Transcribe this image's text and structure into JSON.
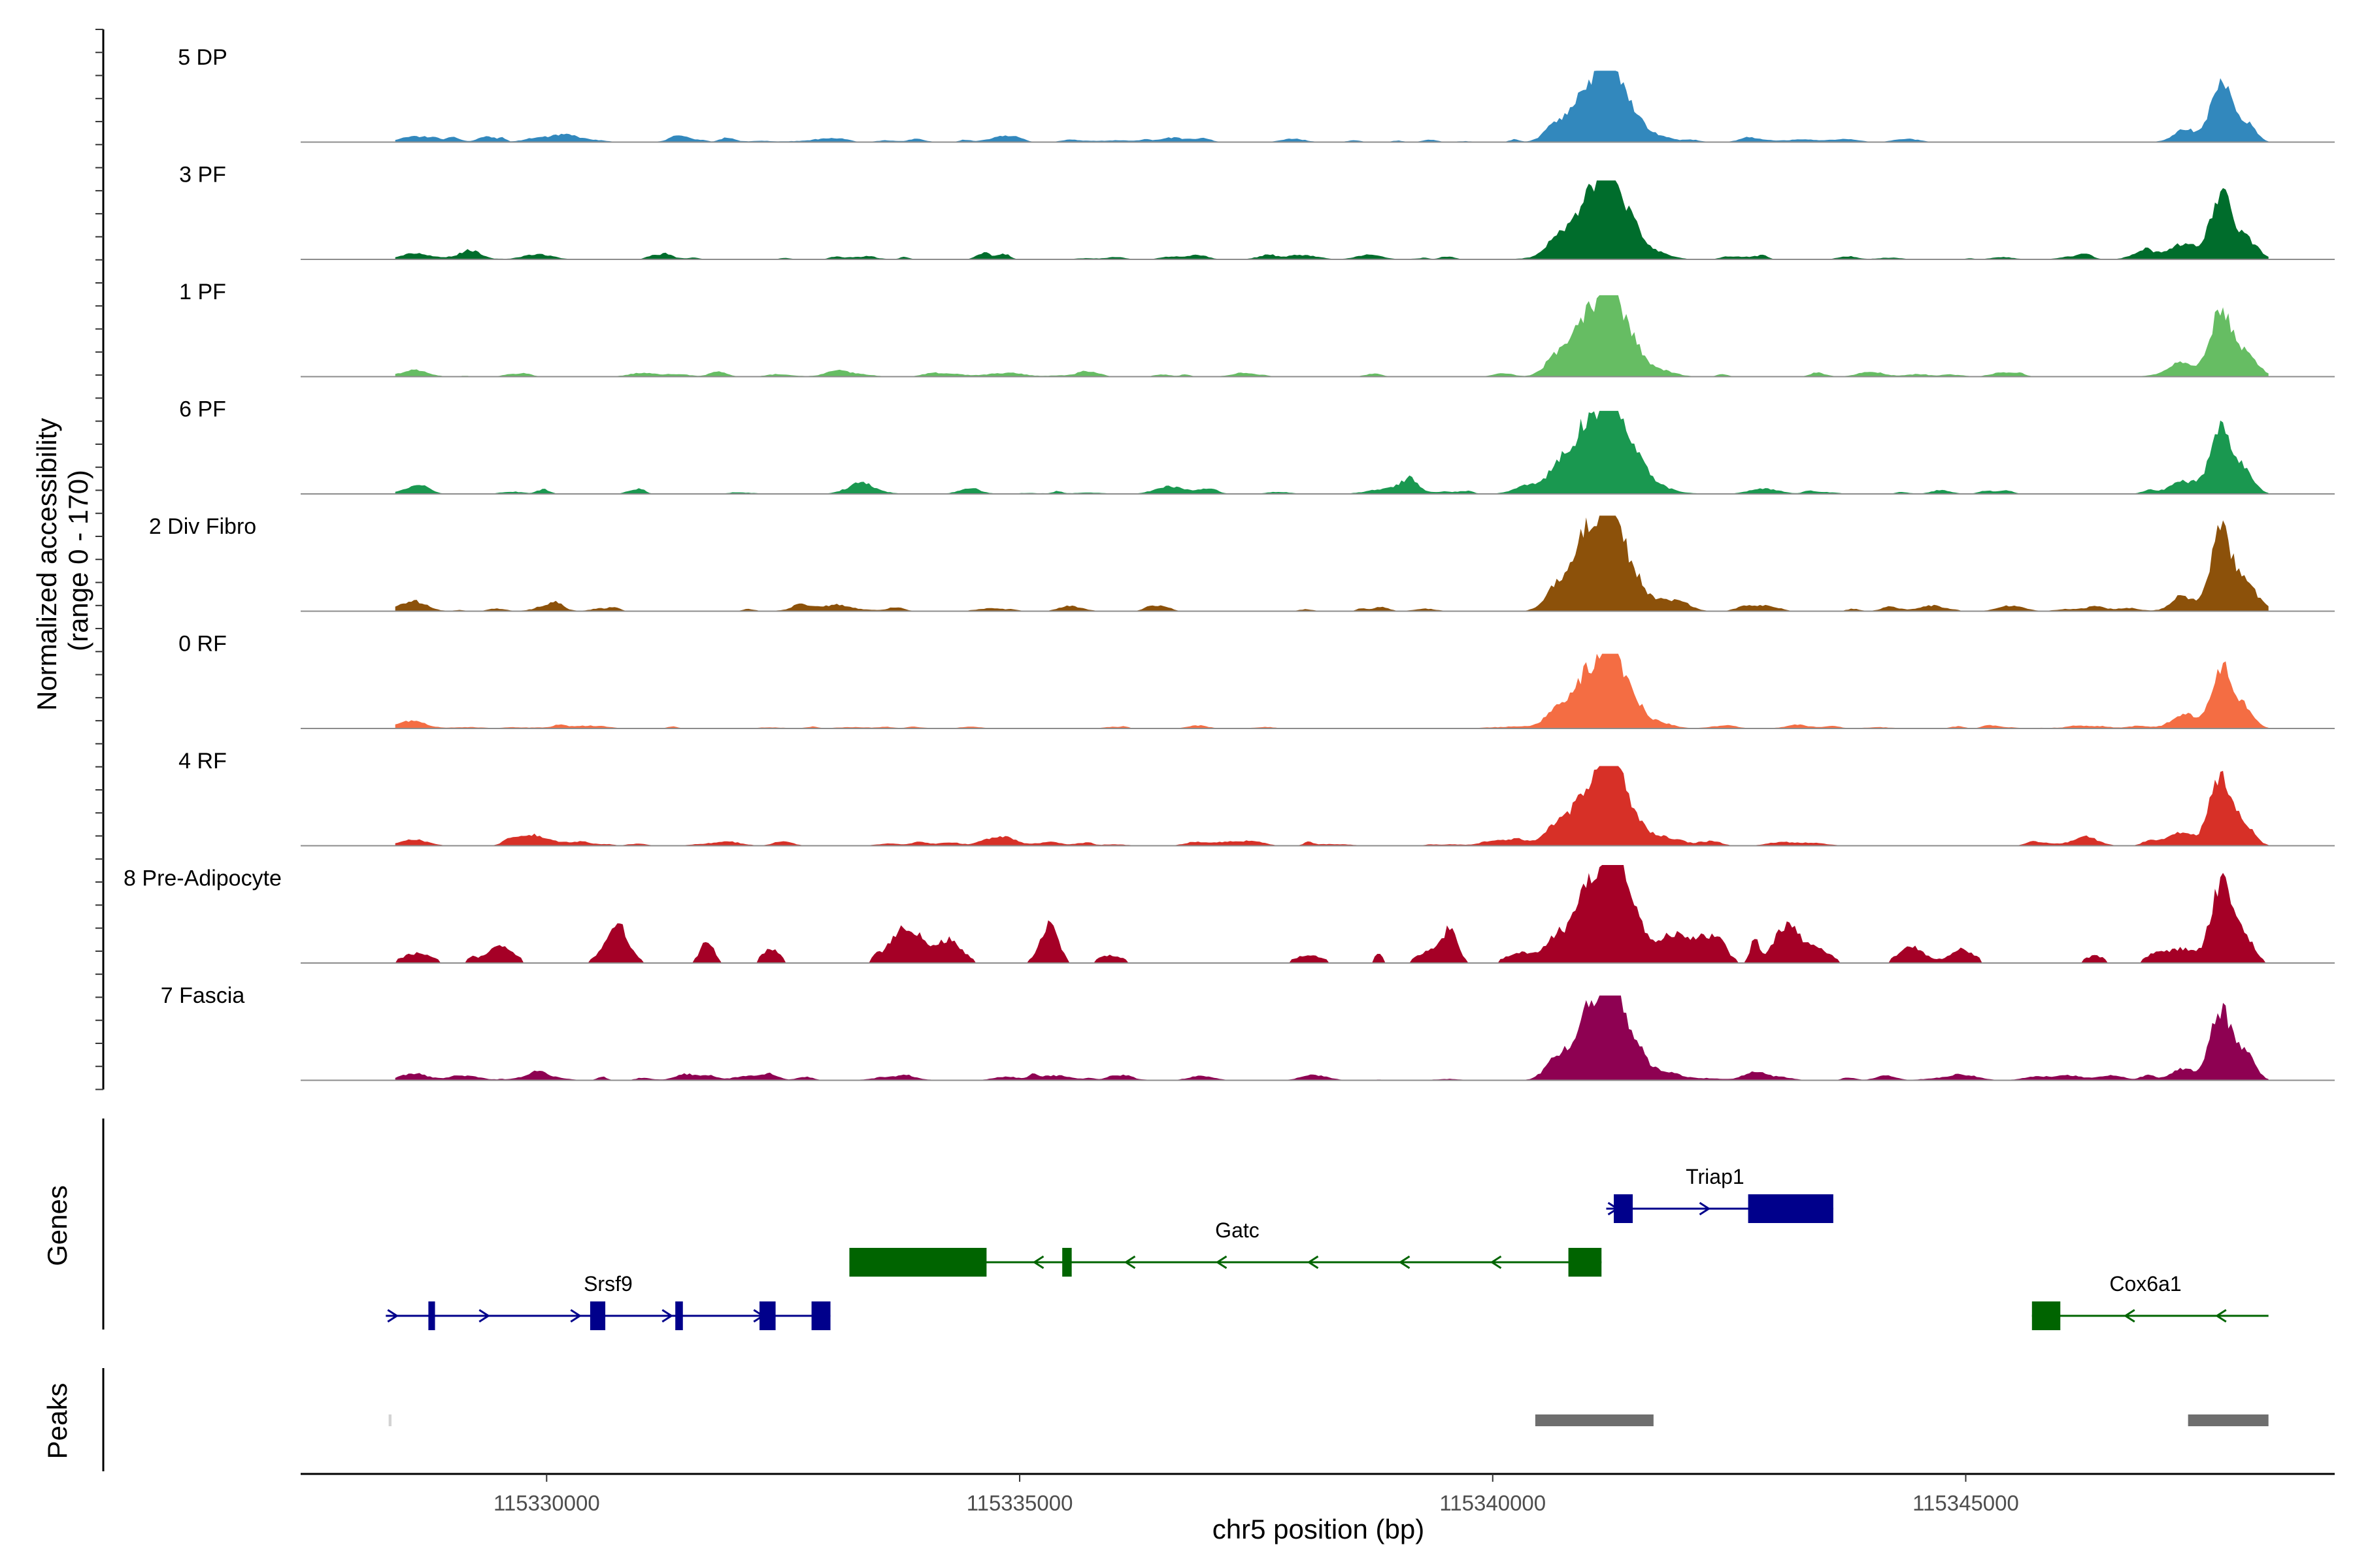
{
  "chart_data": {
    "type": "area",
    "title": "",
    "ylabel": "Normalized accessibility\n(range 0 - 170)",
    "ylabel_lines": [
      "Normalized accessibility",
      "(range 0 - 170)"
    ],
    "xlabel": "chr5 position (bp)",
    "xlim": [
      115327400,
      115348900
    ],
    "ylim": [
      0,
      170
    ],
    "region": [
      115328400,
      115348200
    ],
    "x_ticks": [
      115330000,
      115335000,
      115340000,
      115345000
    ],
    "x_tick_labels": [
      "115330000",
      "115335000",
      "115340000",
      "115345000"
    ],
    "peak_shapes": [
      {
        "center": 115328600,
        "width": 140,
        "rel": 0.08
      },
      {
        "center": 115340700,
        "width": 130,
        "rel": 0.28
      },
      {
        "center": 115340980,
        "width": 120,
        "rel": 0.4
      },
      {
        "center": 115341100,
        "width": 150,
        "rel": 0.46
      },
      {
        "center": 115341250,
        "width": 90,
        "rel": 1.0
      },
      {
        "center": 115341450,
        "width": 110,
        "rel": 0.42
      },
      {
        "center": 115341700,
        "width": 160,
        "rel": 0.1
      },
      {
        "center": 115347300,
        "width": 120,
        "rel": 0.14
      },
      {
        "center": 115347700,
        "width": 110,
        "rel": 0.82
      },
      {
        "center": 115347950,
        "width": 100,
        "rel": 0.25
      }
    ],
    "series": [
      {
        "name": "5 DP",
        "color": "#3288bd",
        "peak_value": 86,
        "noise": 0.05,
        "seed": 11,
        "blocky": false
      },
      {
        "name": "3 PF",
        "color": "#006d2c",
        "peak_value": 95,
        "noise": 0.05,
        "seed": 23,
        "blocky": false
      },
      {
        "name": "1 PF",
        "color": "#66bd63",
        "peak_value": 98,
        "noise": 0.04,
        "seed": 37,
        "blocky": false
      },
      {
        "name": "6 PF",
        "color": "#1a9850",
        "peak_value": 100,
        "noise": 0.06,
        "seed": 41,
        "blocky": false
      },
      {
        "name": "2 Div Fibro",
        "color": "#8c510a",
        "peak_value": 115,
        "noise": 0.05,
        "seed": 53,
        "blocky": false
      },
      {
        "name": "0 RF",
        "color": "#f46d43",
        "peak_value": 90,
        "noise": 0.03,
        "seed": 67,
        "blocky": false
      },
      {
        "name": "4 RF",
        "color": "#d73027",
        "peak_value": 96,
        "noise": 0.06,
        "seed": 71,
        "blocky": false
      },
      {
        "name": "8 Pre-Adipocyte",
        "color": "#a50026",
        "peak_value": 118,
        "noise": 0.12,
        "seed": 83,
        "blocky": true
      },
      {
        "name": "7 Fascia",
        "color": "#8e0152",
        "peak_value": 102,
        "noise": 0.06,
        "seed": 97,
        "blocky": false
      }
    ],
    "genes_label": "Genes",
    "genes": [
      {
        "name": "Srsf9",
        "strand": "+",
        "color": "#00008b",
        "start": 115328300,
        "end": 115333000,
        "row": 3,
        "label_at": 115330650,
        "exons": [
          [
            115328750,
            115328820
          ],
          [
            115330460,
            115330620
          ],
          [
            115331360,
            115331440
          ],
          [
            115332250,
            115332420
          ],
          [
            115332800,
            115333000
          ]
        ]
      },
      {
        "name": "Gatc",
        "strand": "-",
        "color": "#006400",
        "start": 115333200,
        "end": 115341150,
        "row": 2,
        "label_at": 115337300,
        "exons": [
          [
            115333200,
            115334650
          ],
          [
            115335450,
            115335550
          ],
          [
            115340800,
            115341150
          ]
        ]
      },
      {
        "name": "Triap1",
        "strand": "+",
        "color": "#00008b",
        "start": 115341200,
        "end": 115343600,
        "row": 1,
        "label_at": 115342350,
        "exons": [
          [
            115341280,
            115341480
          ],
          [
            115342700,
            115343600
          ]
        ]
      },
      {
        "name": "Cox6a1",
        "strand": "-",
        "color": "#006400",
        "start": 115345700,
        "end": 115348200,
        "row": 3,
        "label_at": 115346900,
        "exons": [
          [
            115345700,
            115346000
          ]
        ]
      }
    ],
    "peaks_label": "Peaks",
    "peaks": [
      {
        "start": 115328330,
        "end": 115328360,
        "color": "#d3d3d3"
      },
      {
        "start": 115340450,
        "end": 115341700,
        "color": "#6e6e6e"
      },
      {
        "start": 115347350,
        "end": 115348200,
        "color": "#6e6e6e"
      }
    ]
  }
}
